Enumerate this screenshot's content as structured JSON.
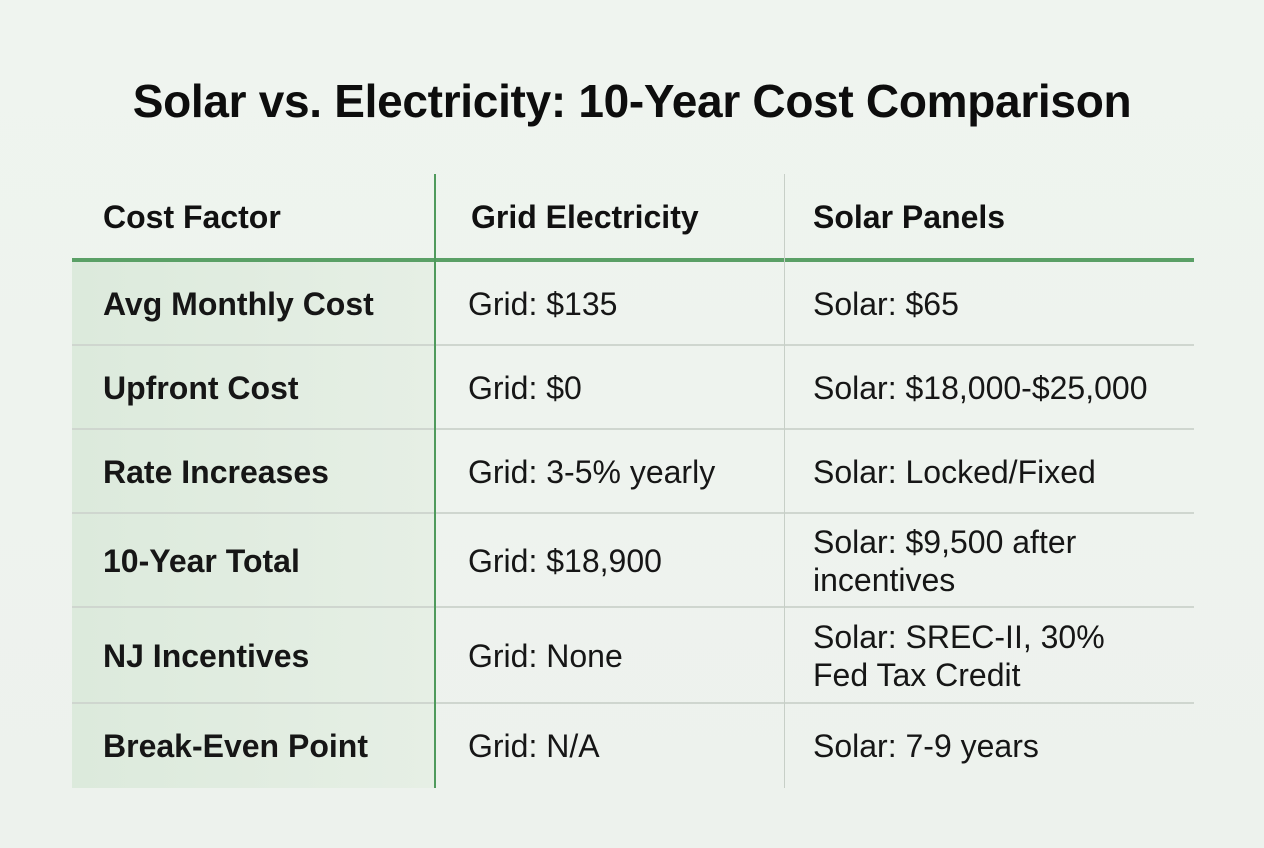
{
  "title": "Solar vs. Electricity: 10-Year Cost Comparison",
  "colors": {
    "background": "#eef3ee",
    "accent_green": "#5aa066",
    "first_column_fill": "#dceadc",
    "row_divider": "#cfd6cf"
  },
  "chart_data": {
    "type": "table",
    "title": "Solar vs. Electricity: 10-Year Cost Comparison",
    "columns": [
      "Cost Factor",
      "Grid Electricity",
      "Solar Panels"
    ],
    "rows": [
      [
        "Avg Monthly Cost",
        "Grid: $135",
        "Solar: $65"
      ],
      [
        "Upfront Cost",
        "Grid: $0",
        "Solar: $18,000-$25,000"
      ],
      [
        "Rate Increases",
        "Grid: 3-5% yearly",
        "Solar: Locked/Fixed"
      ],
      [
        "10-Year Total",
        "Grid: $18,900",
        "Solar: $9,500 after incentives"
      ],
      [
        "NJ Incentives",
        "Grid: None",
        "Solar: SREC-II, 30% Fed Tax Credit"
      ],
      [
        "Break-Even Point",
        "Grid: N/A",
        "Solar: 7-9 years"
      ]
    ]
  }
}
